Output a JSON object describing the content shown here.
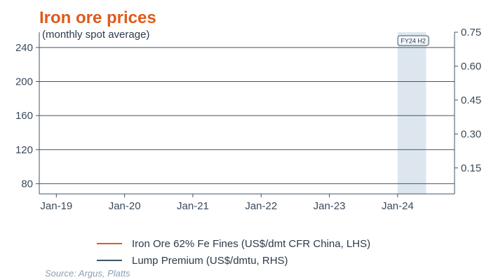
{
  "chart_data": {
    "type": "line",
    "title": "Iron ore prices",
    "subtitle": "(monthly spot average)",
    "x_ticks": [
      "Jan-19",
      "Jan-20",
      "Jan-21",
      "Jan-22",
      "Jan-23",
      "Jan-24"
    ],
    "x_range": [
      "2018-10",
      "2024-11"
    ],
    "y_left": {
      "ticks": [
        80,
        120,
        160,
        200,
        240
      ],
      "ylim": [
        68,
        258
      ]
    },
    "y_right": {
      "ticks": [
        "0.15",
        "0.30",
        "0.45",
        "0.60",
        "0.75"
      ],
      "ylim": [
        0.035,
        0.75
      ]
    },
    "grid": true,
    "highlight_band": {
      "label": "FY24 H2",
      "start": "2024-01",
      "end": "2024-06"
    },
    "series": [
      {
        "name": "Iron Ore 62% Fe Fines (US$/dmt CFR China, LHS)",
        "axis": "left",
        "color": "#e05a1a",
        "values": []
      },
      {
        "name": "Lump Premium (US$/dmtu, RHS)",
        "axis": "right",
        "color": "#3d5568",
        "values": []
      }
    ],
    "legend_position": "bottom"
  },
  "source": "Source: Argus, Platts"
}
